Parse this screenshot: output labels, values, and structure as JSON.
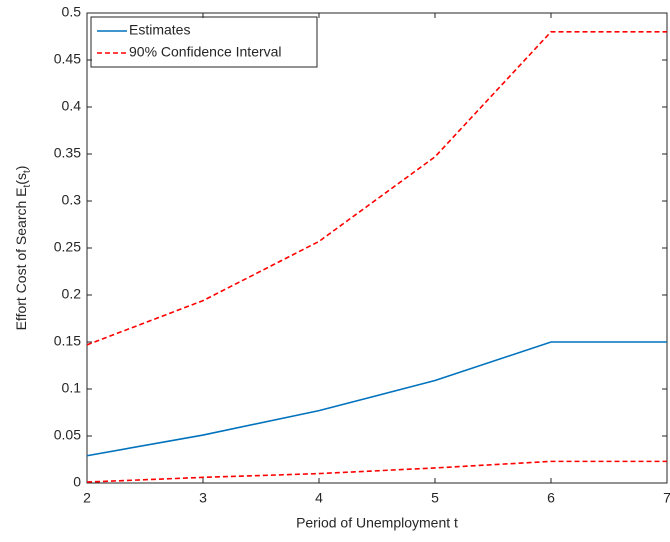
{
  "chart_data": {
    "type": "line",
    "x_label": "Period of Unemployment t",
    "y_label": [
      "Effort Cost of Search E",
      "t",
      "(s",
      "t",
      ")"
    ],
    "x": [
      2,
      3,
      4,
      5,
      6,
      7
    ],
    "series": [
      {
        "name": "Estimates",
        "color": "#0072bd",
        "dash": false,
        "values": [
          0.029,
          0.051,
          0.077,
          0.109,
          0.15,
          0.15
        ]
      },
      {
        "name": "90% Confidence Interval",
        "color": "#ff0000",
        "dash": true,
        "values": [
          0.147,
          0.194,
          0.257,
          0.347,
          0.48,
          0.48
        ],
        "lower": [
          0.001,
          0.006,
          0.01,
          0.016,
          0.023,
          0.023
        ]
      }
    ],
    "xlim": [
      2,
      7
    ],
    "xticks": [
      2,
      3,
      4,
      5,
      6,
      7
    ],
    "ylim": [
      0,
      0.5
    ],
    "yticks": [
      0,
      0.05,
      0.1,
      0.15,
      0.2,
      0.25,
      0.3,
      0.35,
      0.4,
      0.45,
      0.5
    ],
    "grid": false,
    "legend": "upper-left"
  }
}
